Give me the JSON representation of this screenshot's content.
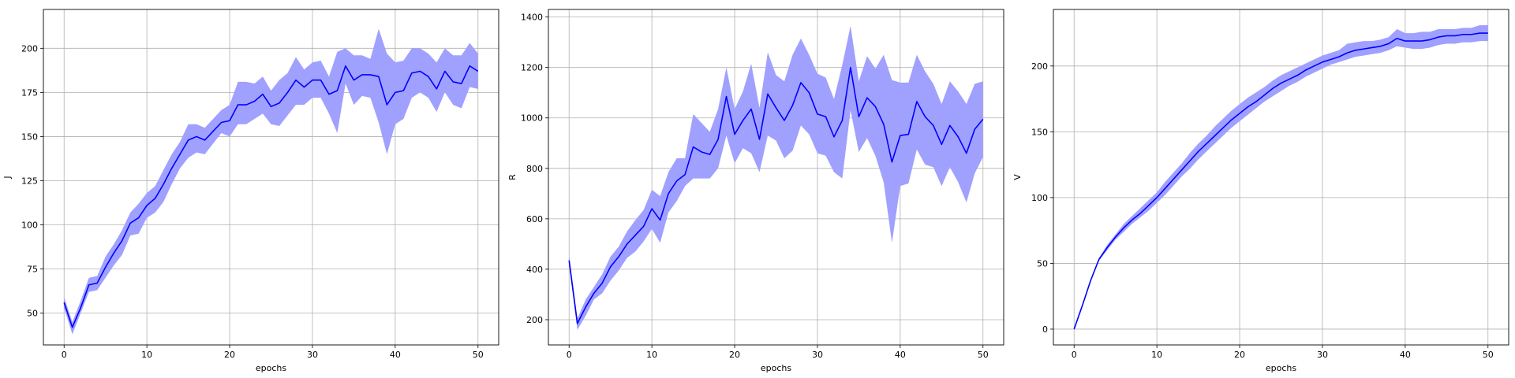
{
  "chart_data": [
    {
      "type": "line",
      "xlabel": "epochs",
      "ylabel": "J",
      "xlim": [
        -2.5,
        52.5
      ],
      "ylim": [
        32,
        222
      ],
      "xticks": [
        0,
        10,
        20,
        30,
        40,
        50
      ],
      "yticks": [
        50,
        75,
        100,
        125,
        150,
        175,
        200
      ],
      "grid": true,
      "series": [
        {
          "line_color": "#0000ff",
          "band_color": "#a0a0ff",
          "x": [
            0,
            1,
            2,
            3,
            4,
            5,
            6,
            7,
            8,
            9,
            10,
            11,
            12,
            13,
            14,
            15,
            16,
            17,
            18,
            19,
            20,
            21,
            22,
            23,
            24,
            25,
            26,
            27,
            28,
            29,
            30,
            31,
            32,
            33,
            34,
            35,
            36,
            37,
            38,
            39,
            40,
            41,
            42,
            43,
            44,
            45,
            46,
            47,
            48,
            49,
            50
          ],
          "y": [
            56,
            42,
            53,
            66,
            67,
            76,
            84,
            91,
            101,
            104,
            111,
            115,
            123,
            132,
            140,
            148,
            150,
            148,
            153,
            158,
            159,
            168,
            168,
            170,
            174,
            167,
            169,
            175,
            182,
            178,
            182,
            182,
            174,
            176,
            190,
            182,
            185,
            185,
            184,
            168,
            175,
            176,
            186,
            187,
            184,
            177,
            187,
            181,
            180,
            190,
            187
          ],
          "lower": [
            53,
            38,
            50,
            62,
            63,
            70,
            77,
            83,
            94,
            95,
            104,
            107,
            113,
            123,
            132,
            138,
            141,
            140,
            146,
            152,
            150,
            157,
            157,
            160,
            163,
            157,
            156,
            162,
            168,
            168,
            172,
            172,
            163,
            152,
            180,
            168,
            173,
            172,
            158,
            140,
            157,
            160,
            172,
            175,
            172,
            164,
            175,
            168,
            166,
            178,
            177
          ],
          "upper": [
            59,
            45,
            57,
            70,
            71,
            82,
            89,
            97,
            107,
            112,
            118,
            122,
            131,
            140,
            147,
            157,
            157,
            155,
            160,
            165,
            168,
            181,
            181,
            180,
            184,
            176,
            182,
            186,
            195,
            188,
            192,
            193,
            184,
            198,
            200,
            196,
            196,
            194,
            211,
            197,
            192,
            193,
            200,
            200,
            197,
            192,
            200,
            196,
            196,
            203,
            197
          ]
        }
      ]
    },
    {
      "type": "line",
      "xlabel": "epochs",
      "ylabel": "R",
      "xlim": [
        -2.5,
        52.5
      ],
      "ylim": [
        100,
        1430
      ],
      "xticks": [
        0,
        10,
        20,
        30,
        40,
        50
      ],
      "yticks": [
        200,
        400,
        600,
        800,
        1000,
        1200,
        1400
      ],
      "grid": true,
      "series": [
        {
          "line_color": "#0000ff",
          "band_color": "#a0a0ff",
          "x": [
            0,
            1,
            2,
            3,
            4,
            5,
            6,
            7,
            8,
            9,
            10,
            11,
            12,
            13,
            14,
            15,
            16,
            17,
            18,
            19,
            20,
            21,
            22,
            23,
            24,
            25,
            26,
            27,
            28,
            29,
            30,
            31,
            32,
            33,
            34,
            35,
            36,
            37,
            38,
            39,
            40,
            41,
            42,
            43,
            44,
            45,
            46,
            47,
            48,
            49,
            50
          ],
          "y": [
            435,
            185,
            250,
            305,
            345,
            410,
            450,
            500,
            535,
            570,
            640,
            595,
            700,
            750,
            775,
            885,
            865,
            855,
            915,
            1085,
            935,
            990,
            1035,
            915,
            1095,
            1040,
            990,
            1050,
            1140,
            1100,
            1015,
            1005,
            925,
            990,
            1200,
            1005,
            1080,
            1045,
            975,
            825,
            930,
            935,
            1065,
            1005,
            970,
            895,
            970,
            925,
            860,
            955,
            995
          ],
          "lower": [
            415,
            160,
            215,
            280,
            305,
            355,
            395,
            445,
            470,
            510,
            560,
            505,
            625,
            670,
            730,
            760,
            760,
            760,
            800,
            930,
            820,
            880,
            860,
            785,
            930,
            910,
            840,
            870,
            970,
            935,
            860,
            850,
            785,
            760,
            1030,
            865,
            920,
            850,
            745,
            505,
            730,
            740,
            875,
            815,
            805,
            730,
            805,
            745,
            665,
            780,
            845
          ],
          "upper": [
            455,
            205,
            280,
            330,
            380,
            450,
            490,
            550,
            595,
            635,
            715,
            690,
            785,
            840,
            840,
            1015,
            980,
            945,
            1035,
            1200,
            1035,
            1105,
            1215,
            1040,
            1260,
            1170,
            1145,
            1250,
            1315,
            1250,
            1175,
            1160,
            1075,
            1210,
            1365,
            1145,
            1245,
            1195,
            1250,
            1150,
            1140,
            1140,
            1250,
            1185,
            1135,
            1055,
            1145,
            1105,
            1055,
            1135,
            1145
          ]
        }
      ]
    },
    {
      "type": "line",
      "xlabel": "epochs",
      "ylabel": "V",
      "xlim": [
        -2.5,
        52.5
      ],
      "ylim": [
        -12,
        243
      ],
      "xticks": [
        0,
        10,
        20,
        30,
        40,
        50
      ],
      "yticks": [
        0,
        50,
        100,
        150,
        200
      ],
      "grid": true,
      "series": [
        {
          "line_color": "#0000ff",
          "band_color": "#a0a0ff",
          "x": [
            0,
            1,
            2,
            3,
            4,
            5,
            6,
            7,
            8,
            9,
            10,
            11,
            12,
            13,
            14,
            15,
            16,
            17,
            18,
            19,
            20,
            21,
            22,
            23,
            24,
            25,
            26,
            27,
            28,
            29,
            30,
            31,
            32,
            33,
            34,
            35,
            36,
            37,
            38,
            39,
            40,
            41,
            42,
            43,
            44,
            45,
            46,
            47,
            48,
            49,
            50
          ],
          "y": [
            0,
            18,
            37,
            53,
            62,
            70,
            77,
            83,
            88,
            94,
            100,
            107,
            114,
            121,
            128,
            135,
            141,
            147,
            153,
            159,
            164,
            169,
            173,
            178,
            183,
            187,
            190,
            193,
            197,
            200,
            203,
            205,
            207,
            210,
            212,
            213,
            214,
            215,
            217,
            221,
            219,
            219,
            219,
            220,
            222,
            223,
            223,
            224,
            224,
            225,
            225
          ],
          "lower": [
            0,
            17,
            36,
            52,
            60,
            68,
            74,
            80,
            85,
            90,
            96,
            102,
            109,
            116,
            122,
            129,
            135,
            141,
            147,
            153,
            158,
            163,
            168,
            173,
            177,
            181,
            185,
            188,
            192,
            195,
            198,
            201,
            203,
            205,
            207,
            208,
            209,
            210,
            212,
            215,
            214,
            213,
            213,
            214,
            216,
            217,
            217,
            218,
            218,
            219,
            219
          ],
          "upper": [
            0,
            19,
            38,
            54,
            64,
            72,
            80,
            86,
            92,
            98,
            104,
            112,
            119,
            126,
            134,
            141,
            147,
            154,
            160,
            166,
            171,
            176,
            180,
            184,
            189,
            193,
            196,
            199,
            202,
            205,
            208,
            210,
            212,
            217,
            218,
            219,
            219,
            220,
            222,
            228,
            225,
            225,
            226,
            226,
            228,
            228,
            228,
            229,
            229,
            231,
            231
          ]
        }
      ]
    }
  ]
}
